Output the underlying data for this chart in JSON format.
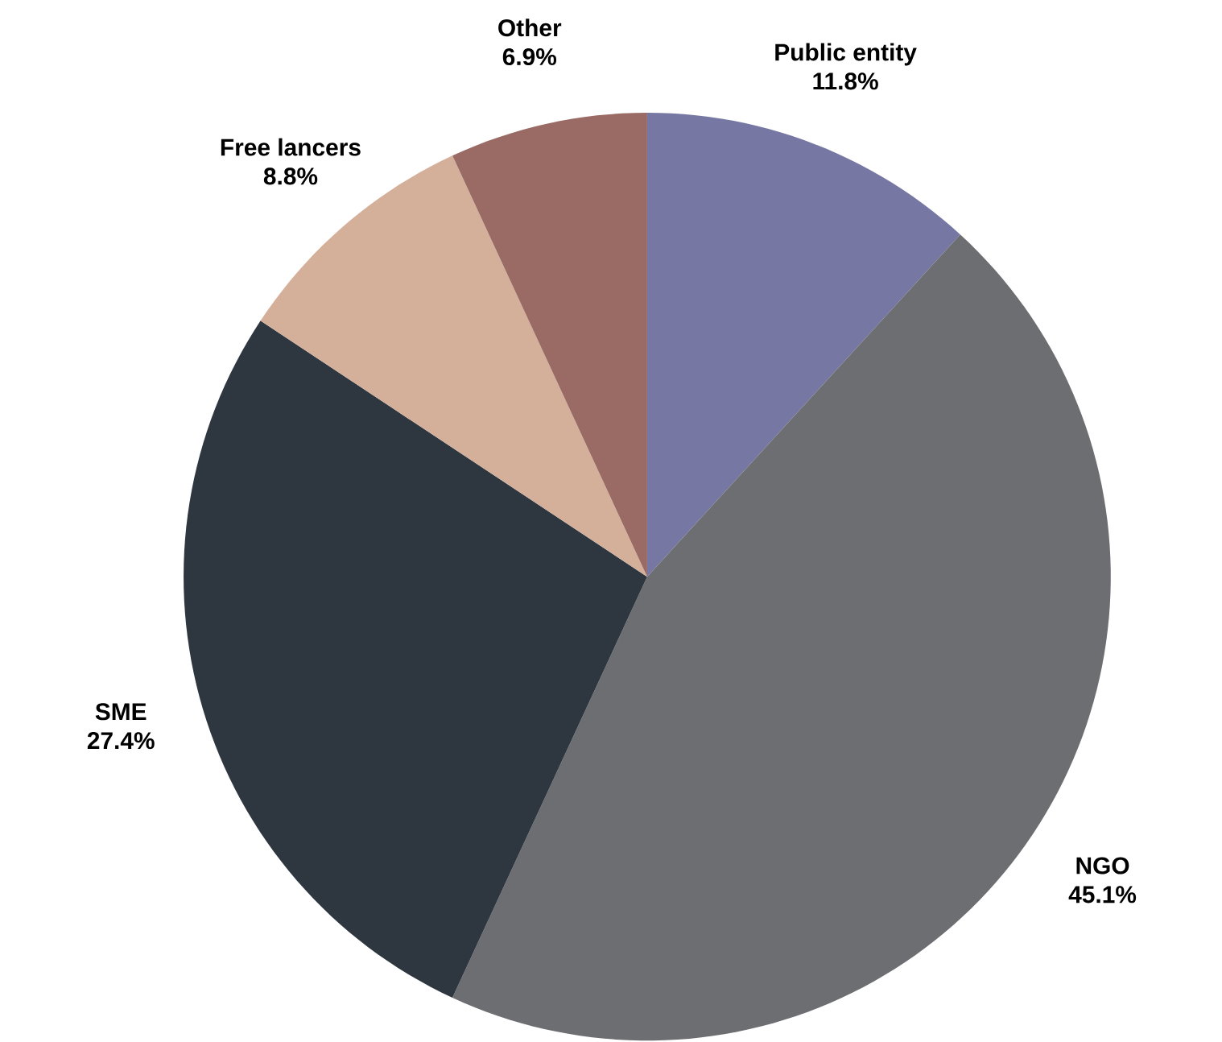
{
  "chart_data": {
    "type": "pie",
    "categories": [
      "Public entity",
      "NGO",
      "SME",
      "Free lancers",
      "Other"
    ],
    "values": [
      11.8,
      45.1,
      27.4,
      8.8,
      6.9
    ],
    "value_labels": [
      "11.8%",
      "45.1%",
      "27.4%",
      "8.8%",
      "6.9%"
    ],
    "colors": [
      "#7677a3",
      "#6d6e72",
      "#2e3640",
      "#d4b09a",
      "#9a6b65"
    ]
  }
}
